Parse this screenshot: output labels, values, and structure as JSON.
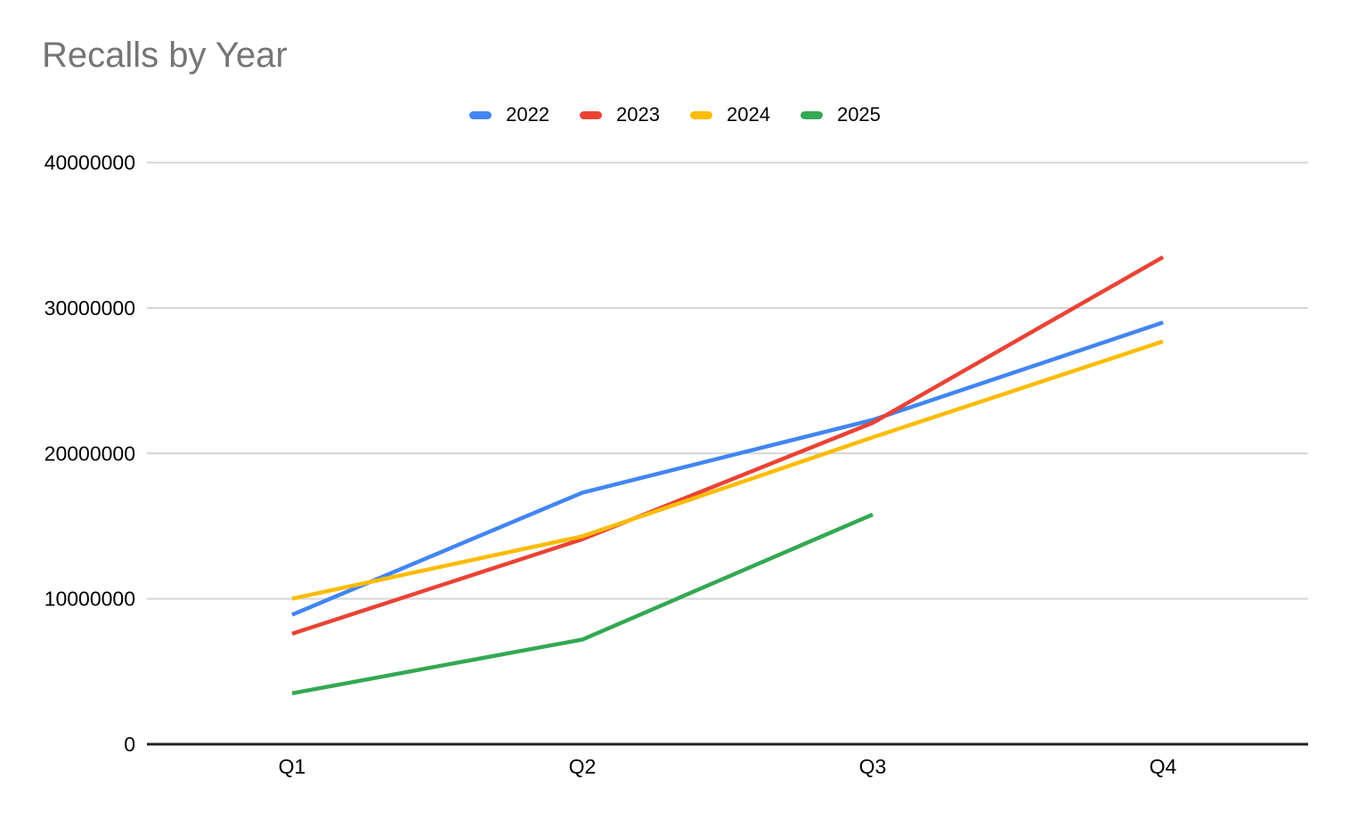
{
  "chart": {
    "title": "Recalls by Year",
    "title_color": "#757575"
  },
  "chart_data": {
    "type": "line",
    "title": "Recalls by Year",
    "xlabel": "",
    "ylabel": "",
    "categories": [
      "Q1",
      "Q2",
      "Q3",
      "Q4"
    ],
    "series": [
      {
        "name": "2022",
        "color": "#4285F4",
        "values": [
          8900000,
          17300000,
          22300000,
          29000000
        ]
      },
      {
        "name": "2023",
        "color": "#EA4335",
        "values": [
          7600000,
          14100000,
          22100000,
          33500000
        ]
      },
      {
        "name": "2024",
        "color": "#FBBC04",
        "values": [
          10000000,
          14300000,
          21100000,
          27700000
        ]
      },
      {
        "name": "2025",
        "color": "#34A853",
        "values": [
          3500000,
          7200000,
          15800000,
          null
        ]
      }
    ],
    "ylim": [
      0,
      40000000
    ],
    "yticks": [
      0,
      10000000,
      20000000,
      30000000,
      40000000
    ],
    "ytick_labels": [
      "0",
      "10000000",
      "20000000",
      "30000000",
      "40000000"
    ],
    "grid": true,
    "legend_position": "top-center",
    "colors": {
      "gridline": "#d6d6d6",
      "axis_line": "#222222",
      "tick_text": "#000000",
      "background": "#ffffff"
    }
  }
}
